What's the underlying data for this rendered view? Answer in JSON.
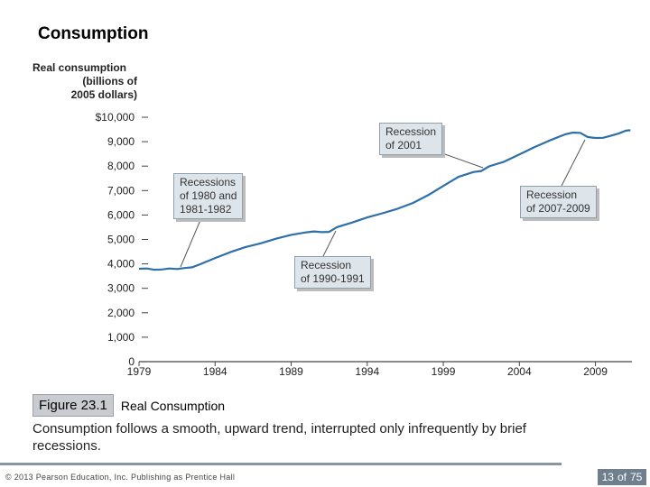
{
  "slide": {
    "title": "Consumption",
    "figure_number": "Figure 23.1",
    "figure_title": "Real Consumption",
    "description": "Consumption follows a smooth, upward trend, interrupted only infrequently by brief recessions.",
    "copyright": "© 2013 Pearson Education, Inc. Publishing as Prentice Hall",
    "page_current": "13",
    "page_of": "of",
    "page_total": "75"
  },
  "colors": {
    "line": "#2f6fa8",
    "axis": "#444444",
    "annotation_bg": "#dde4ea",
    "footer": "#6f7f8e"
  },
  "chart_data": {
    "type": "line",
    "ylabel_lines": [
      "Real consumption",
      "(billions of",
      "2005 dollars)"
    ],
    "y_ticks": [
      {
        "value": 0,
        "label": "0"
      },
      {
        "value": 1000,
        "label": "1,000"
      },
      {
        "value": 2000,
        "label": "2,000"
      },
      {
        "value": 3000,
        "label": "3,000"
      },
      {
        "value": 4000,
        "label": "4,000"
      },
      {
        "value": 5000,
        "label": "5,000"
      },
      {
        "value": 6000,
        "label": "6,000"
      },
      {
        "value": 7000,
        "label": "7,000"
      },
      {
        "value": 8000,
        "label": "8,000"
      },
      {
        "value": 9000,
        "label": "9,000"
      },
      {
        "value": 10000,
        "label": "$10,000"
      }
    ],
    "x_ticks": [
      1979,
      1984,
      1989,
      1994,
      1999,
      2004,
      2009
    ],
    "xlim": [
      1979,
      2011.4
    ],
    "ylim": [
      0,
      10000
    ],
    "series": [
      {
        "name": "Real consumption",
        "x": [
          1979,
          1979.5,
          1980,
          1980.5,
          1981,
          1981.5,
          1982,
          1982.5,
          1983,
          1984,
          1985,
          1986,
          1987,
          1988,
          1989,
          1990,
          1990.5,
          1991,
          1991.5,
          1992,
          1993,
          1994,
          1995,
          1996,
          1997,
          1998,
          1999,
          2000,
          2001,
          2001.5,
          2002,
          2003,
          2004,
          2005,
          2006,
          2007,
          2007.5,
          2008,
          2008.5,
          2009,
          2009.5,
          2010,
          2010.5,
          2011,
          2011.3
        ],
        "values": [
          3800,
          3810,
          3760,
          3770,
          3810,
          3790,
          3830,
          3860,
          3980,
          4240,
          4480,
          4690,
          4840,
          5030,
          5190,
          5290,
          5330,
          5300,
          5310,
          5500,
          5690,
          5900,
          6070,
          6260,
          6490,
          6810,
          7190,
          7560,
          7760,
          7800,
          7990,
          8180,
          8480,
          8780,
          9050,
          9300,
          9370,
          9360,
          9190,
          9150,
          9160,
          9240,
          9330,
          9450,
          9470
        ]
      }
    ],
    "annotations": [
      {
        "lines": [
          "Recessions",
          "of 1980 and",
          "1981-1982"
        ]
      },
      {
        "lines": [
          "Recession",
          "of 1990-1991"
        ]
      },
      {
        "lines": [
          "Recession",
          "of 2001"
        ]
      },
      {
        "lines": [
          "Recession",
          "of 2007-2009"
        ]
      }
    ]
  }
}
